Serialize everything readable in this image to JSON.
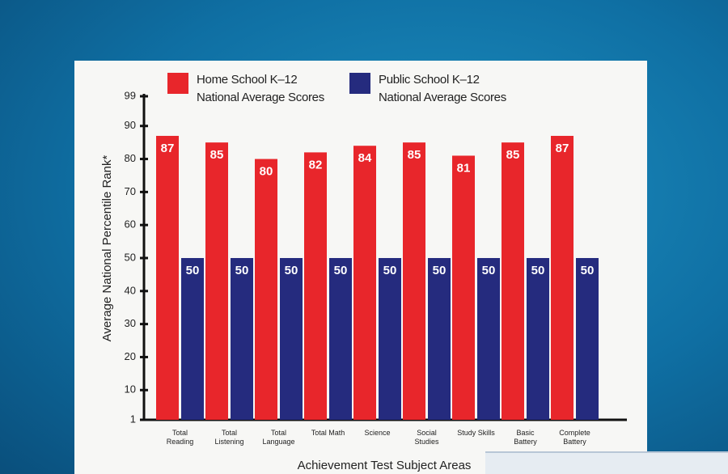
{
  "chart_data": {
    "type": "bar",
    "legend_labels": [
      "Home School K–12 National Average Scores",
      "Public School K–12 National Average Scores"
    ],
    "y_label": "Average National Percentile Rank*",
    "x_label": "Achievement Test Subject Areas",
    "categories": [
      "Total Reading",
      "Total Listening",
      "Total Language",
      "Total Math",
      "Science",
      "Social Studies",
      "Study Skills",
      "Basic Battery",
      "Complete Battery"
    ],
    "series": [
      {
        "name": "Home School K–12 National Average Scores",
        "color": "#e8262b",
        "values": [
          87,
          85,
          80,
          82,
          84,
          85,
          81,
          85,
          87
        ]
      },
      {
        "name": "Public School K–12 National Average Scores",
        "color": "#252b7e",
        "values": [
          50,
          50,
          50,
          50,
          50,
          50,
          50,
          50,
          50
        ]
      }
    ],
    "ylim": [
      1,
      99
    ],
    "yticks": [
      1,
      10,
      20,
      30,
      40,
      50,
      60,
      70,
      80,
      90,
      99
    ]
  }
}
